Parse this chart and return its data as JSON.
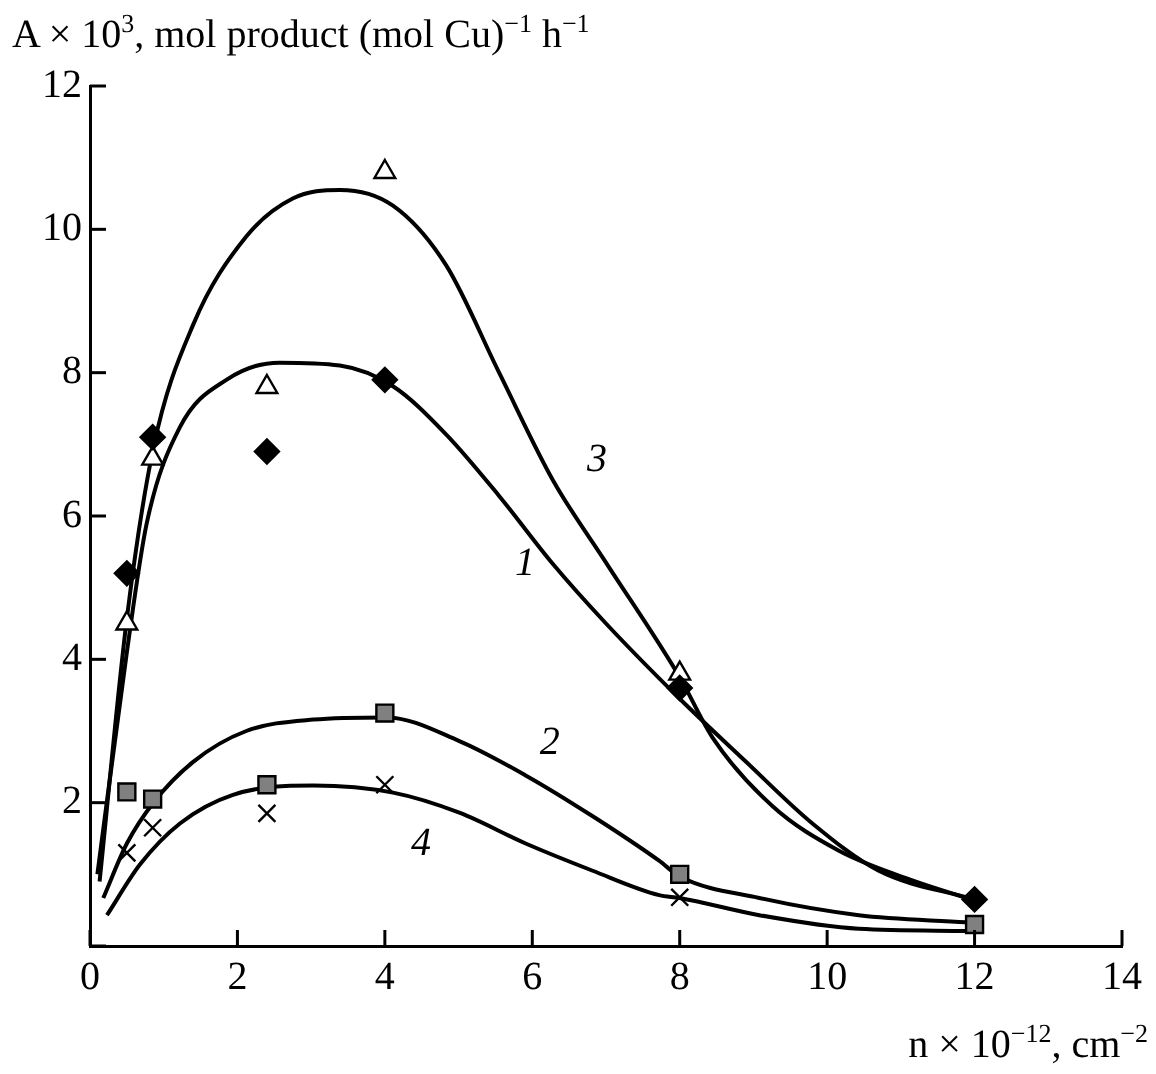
{
  "chart_data": {
    "type": "scatter",
    "ylabel": "A × 10$^{3}$, mol product (mol Cu)$^{−1}$ h$^{−1}$",
    "xlabel": "n × 10$^{−12}$, cm$^{−2}$",
    "xlim": [
      0,
      14
    ],
    "xticks": [
      0,
      2,
      4,
      6,
      8,
      10,
      12,
      14
    ],
    "ylim": [
      0,
      12
    ],
    "yticks": [
      {
        "value": 0,
        "label": null
      },
      2,
      4,
      6,
      8,
      10,
      12
    ],
    "grid": false,
    "legend": false,
    "series": [
      {
        "marker": "diamond",
        "color": "#000000",
        "x": [
          0.5,
          0.85,
          2.4,
          4,
          8,
          12
        ],
        "values": [
          5.2,
          7.1,
          6.9,
          7.9,
          3.6,
          0.65
        ]
      },
      {
        "marker": "triangle",
        "color": "#000000",
        "x": [
          0.5,
          0.85,
          2.4,
          4,
          8
        ],
        "values": [
          4.5,
          6.8,
          7.8,
          10.8,
          3.8
        ]
      },
      {
        "marker": "square",
        "color": "#808080",
        "x": [
          0.5,
          0.85,
          2.4,
          4,
          8,
          12
        ],
        "values": [
          2.15,
          2.05,
          2.25,
          3.25,
          1.0,
          0.3
        ]
      },
      {
        "marker": "cross",
        "color": "#000000",
        "x": [
          0.5,
          0.85,
          2.4,
          4,
          8
        ],
        "values": [
          1.3,
          1.65,
          1.85,
          2.25,
          0.68
        ]
      },
      {
        "type": "line",
        "name": "1",
        "marker": "none",
        "color": "#000000",
        "x": [
          0.1,
          0.5,
          0.77,
          1.22,
          1.85,
          2.57,
          3.39,
          4.11,
          4.83,
          5.55,
          6.28,
          7.0,
          8.0,
          8.9,
          9.8,
          10.7,
          12.0
        ],
        "values": [
          1.0,
          4.1,
          5.9,
          7.24,
          7.9,
          8.14,
          8.1,
          7.81,
          7.14,
          6.28,
          5.33,
          4.5,
          3.45,
          2.57,
          1.71,
          1.05,
          0.65
        ]
      },
      {
        "type": "line",
        "name": "3",
        "marker": "none",
        "color": "#000000",
        "x": [
          0.13,
          0.5,
          0.86,
          1.4,
          2.12,
          2.75,
          3.39,
          4.11,
          4.83,
          5.55,
          6.28,
          7.0,
          8.0,
          8.45,
          9.26,
          10.16,
          11.06,
          11.88
        ],
        "values": [
          0.9,
          4.57,
          6.95,
          8.67,
          9.9,
          10.43,
          10.55,
          10.33,
          9.5,
          8.0,
          6.5,
          5.35,
          3.75,
          2.9,
          1.95,
          1.33,
          0.95,
          0.67
        ]
      },
      {
        "type": "line",
        "name": "2",
        "marker": "none",
        "color": "#000000",
        "x": [
          0.18,
          0.5,
          0.86,
          1.4,
          2.12,
          3.03,
          4.02,
          5.01,
          5.91,
          6.82,
          7.72,
          8.0,
          9.08,
          10.43,
          11.88
        ],
        "values": [
          0.67,
          1.43,
          2.0,
          2.57,
          3.0,
          3.16,
          3.19,
          2.86,
          2.38,
          1.81,
          1.19,
          0.97,
          0.67,
          0.43,
          0.33
        ]
      },
      {
        "type": "line",
        "name": "4",
        "marker": "none",
        "color": "#000000",
        "x": [
          0.23,
          0.68,
          1.22,
          1.94,
          3.03,
          4.11,
          5.01,
          5.91,
          6.82,
          7.72,
          8.0,
          9.08,
          10.43,
          11.88
        ],
        "values": [
          0.43,
          1.14,
          1.71,
          2.11,
          2.24,
          2.14,
          1.86,
          1.43,
          1.05,
          0.71,
          0.67,
          0.43,
          0.24,
          0.21
        ]
      }
    ]
  }
}
